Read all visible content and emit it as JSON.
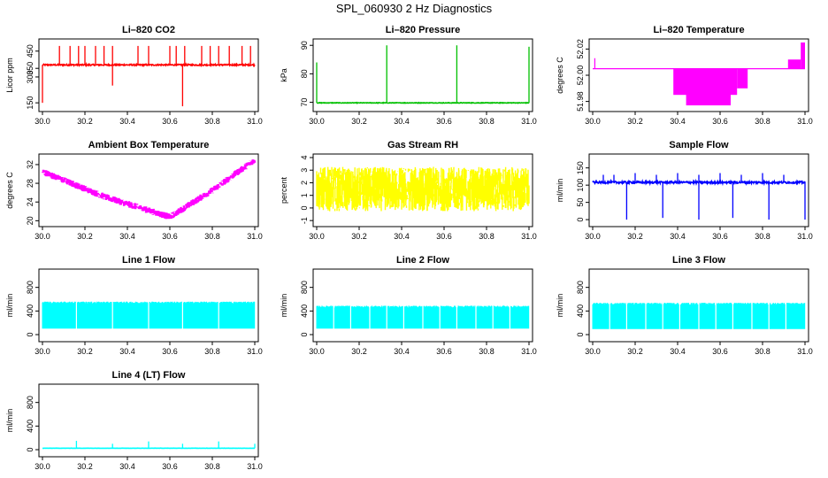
{
  "figure": {
    "title": "SPL_060930  2 Hz Diagnostics"
  },
  "chart_data": [
    {
      "id": "co2",
      "type": "line",
      "title": "Li–820 CO2",
      "xlabel": "",
      "ylabel": "Licor ppm",
      "color": "#ff0000",
      "xlim": [
        30.0,
        31.0
      ],
      "ylim": [
        120,
        500
      ],
      "xticks": [
        "30.0",
        "30.2",
        "30.4",
        "30.6",
        "30.8",
        "31.0"
      ],
      "yticks": [
        "150",
        "300",
        "350",
        "450"
      ],
      "baseline": 370,
      "noise": 8,
      "spikes": [
        [
          30.08,
          480
        ],
        [
          30.13,
          480
        ],
        [
          30.17,
          480
        ],
        [
          30.2,
          480
        ],
        [
          30.25,
          480
        ],
        [
          30.29,
          480
        ],
        [
          30.33,
          480
        ],
        [
          30.45,
          480
        ],
        [
          30.5,
          480
        ],
        [
          30.6,
          480
        ],
        [
          30.63,
          480
        ],
        [
          30.67,
          480
        ],
        [
          30.75,
          480
        ],
        [
          30.79,
          480
        ],
        [
          30.83,
          480
        ],
        [
          30.88,
          480
        ],
        [
          30.94,
          480
        ],
        [
          30.98,
          480
        ]
      ],
      "dips": [
        [
          30.0,
          150
        ],
        [
          30.33,
          250
        ],
        [
          30.66,
          130
        ]
      ]
    },
    {
      "id": "pressure",
      "type": "line",
      "title": "Li–820 Pressure",
      "xlabel": "",
      "ylabel": "kPa",
      "color": "#00c000",
      "xlim": [
        30.0,
        31.0
      ],
      "ylim": [
        68,
        91
      ],
      "xticks": [
        "30.0",
        "30.2",
        "30.4",
        "30.6",
        "30.8",
        "31.0"
      ],
      "yticks": [
        "70",
        "80",
        "90"
      ],
      "baseline": 69.8,
      "noise": 0.2,
      "spikes": [
        [
          30.0,
          84
        ],
        [
          30.33,
          90
        ],
        [
          30.66,
          90
        ],
        [
          31.0,
          89.5
        ]
      ],
      "dips": []
    },
    {
      "id": "li_temp",
      "type": "area",
      "title": "Li–820 Temperature",
      "xlabel": "",
      "ylabel": "degrees C",
      "color": "#ff00ff",
      "xlim": [
        30.0,
        31.0
      ],
      "ylim": [
        51.975,
        52.025
      ],
      "xticks": [
        "30.0",
        "30.2",
        "30.4",
        "30.6",
        "30.8",
        "31.0"
      ],
      "yticks": [
        "51.98",
        "52.00",
        "52.02"
      ],
      "baseline": 52.005,
      "bands": [
        [
          30.38,
          30.68,
          51.985
        ],
        [
          30.68,
          30.73,
          51.99
        ],
        [
          30.44,
          30.65,
          51.977
        ],
        [
          30.92,
          30.98,
          52.012
        ],
        [
          30.98,
          31.0,
          52.025
        ]
      ],
      "spikes": [
        [
          30.01,
          52.013
        ]
      ]
    },
    {
      "id": "ambient_temp",
      "type": "line",
      "title": "Ambient Box Temperature",
      "xlabel": "",
      "ylabel": "degrees C",
      "color": "#ff00ff",
      "xlim": [
        30.0,
        31.0
      ],
      "ylim": [
        19.5,
        33.5
      ],
      "xticks": [
        "30.0",
        "30.2",
        "30.4",
        "30.6",
        "30.8",
        "31.0"
      ],
      "yticks": [
        "20",
        "24",
        "28",
        "32"
      ],
      "x": [
        30.0,
        30.3,
        30.6,
        30.8,
        31.0
      ],
      "y": [
        30.5,
        25.0,
        20.8,
        26.5,
        33.0
      ],
      "noise": 1.4
    },
    {
      "id": "rh",
      "type": "line",
      "title": "Gas Stream RH",
      "xlabel": "",
      "ylabel": "percent",
      "color": "#ffff00",
      "xlim": [
        30.0,
        31.0
      ],
      "ylim": [
        -1.2,
        4.0
      ],
      "xticks": [
        "30.0",
        "30.2",
        "30.4",
        "30.6",
        "30.8",
        "31.0"
      ],
      "yticks": [
        "-1",
        "0",
        "1",
        "2",
        "3",
        "4"
      ],
      "baseline": 1.5,
      "noise": 2.2
    },
    {
      "id": "sample_flow",
      "type": "line",
      "title": "Sample Flow",
      "xlabel": "",
      "ylabel": "ml/min",
      "color": "#0000ff",
      "xlim": [
        30.0,
        31.0
      ],
      "ylim": [
        -10,
        180
      ],
      "xticks": [
        "30.0",
        "30.2",
        "30.4",
        "30.6",
        "30.8",
        "31.0"
      ],
      "yticks": [
        "0",
        "50",
        "100",
        "150"
      ],
      "baseline": 108,
      "noise": 6,
      "spikes": [
        [
          30.05,
          130
        ],
        [
          30.1,
          130
        ],
        [
          30.2,
          135
        ],
        [
          30.3,
          130
        ],
        [
          30.4,
          135
        ],
        [
          30.5,
          130
        ],
        [
          30.6,
          135
        ],
        [
          30.7,
          130
        ],
        [
          30.8,
          135
        ],
        [
          30.9,
          130
        ]
      ],
      "dips": [
        [
          30.16,
          0
        ],
        [
          30.33,
          5
        ],
        [
          30.5,
          0
        ],
        [
          30.66,
          5
        ],
        [
          30.83,
          0
        ],
        [
          31.0,
          0
        ]
      ]
    },
    {
      "id": "line1",
      "type": "area",
      "title": "Line 1 Flow",
      "xlabel": "",
      "ylabel": "ml/min",
      "color": "#00ffff",
      "xlim": [
        30.0,
        31.0
      ],
      "ylim": [
        -60,
        1050
      ],
      "xticks": [
        "30.0",
        "30.2",
        "30.4",
        "30.6",
        "30.8",
        "31.0"
      ],
      "yticks": [
        "0",
        "400",
        "800"
      ],
      "upper": 540,
      "lower": 100,
      "gaps": [
        30.16,
        30.33,
        30.5,
        30.66,
        30.83
      ]
    },
    {
      "id": "line2",
      "type": "area",
      "title": "Line 2 Flow",
      "xlabel": "",
      "ylabel": "ml/min",
      "color": "#00ffff",
      "xlim": [
        30.0,
        31.0
      ],
      "ylim": [
        -60,
        1050
      ],
      "xticks": [
        "30.0",
        "30.2",
        "30.4",
        "30.6",
        "30.8",
        "31.0"
      ],
      "yticks": [
        "0",
        "400",
        "800"
      ],
      "upper": 470,
      "lower": 100,
      "gaps": [
        30.08,
        30.16,
        30.25,
        30.33,
        30.41,
        30.5,
        30.58,
        30.66,
        30.75,
        30.83,
        30.91
      ]
    },
    {
      "id": "line3",
      "type": "area",
      "title": "Line 3 Flow",
      "xlabel": "",
      "ylabel": "ml/min",
      "color": "#00ffff",
      "xlim": [
        30.0,
        31.0
      ],
      "ylim": [
        -60,
        1050
      ],
      "xticks": [
        "30.0",
        "30.2",
        "30.4",
        "30.6",
        "30.8",
        "31.0"
      ],
      "yticks": [
        "0",
        "400",
        "800"
      ],
      "upper": 520,
      "lower": 95,
      "gaps": [
        30.08,
        30.16,
        30.25,
        30.33,
        30.41,
        30.5,
        30.58,
        30.66,
        30.75,
        30.83,
        30.91
      ]
    },
    {
      "id": "line4",
      "type": "line",
      "title": "Line 4 (LT) Flow",
      "xlabel": "",
      "ylabel": "ml/min",
      "color": "#00ffff",
      "xlim": [
        30.0,
        31.0
      ],
      "ylim": [
        -60,
        1050
      ],
      "xticks": [
        "30.0",
        "30.2",
        "30.4",
        "30.6",
        "30.8",
        "31.0"
      ],
      "yticks": [
        "0",
        "400",
        "800"
      ],
      "baseline": 25,
      "noise": 3,
      "spikes": [
        [
          30.16,
          150
        ],
        [
          30.33,
          100
        ],
        [
          30.5,
          140
        ],
        [
          30.66,
          100
        ],
        [
          30.83,
          140
        ],
        [
          31.0,
          100
        ]
      ],
      "dips": []
    }
  ]
}
